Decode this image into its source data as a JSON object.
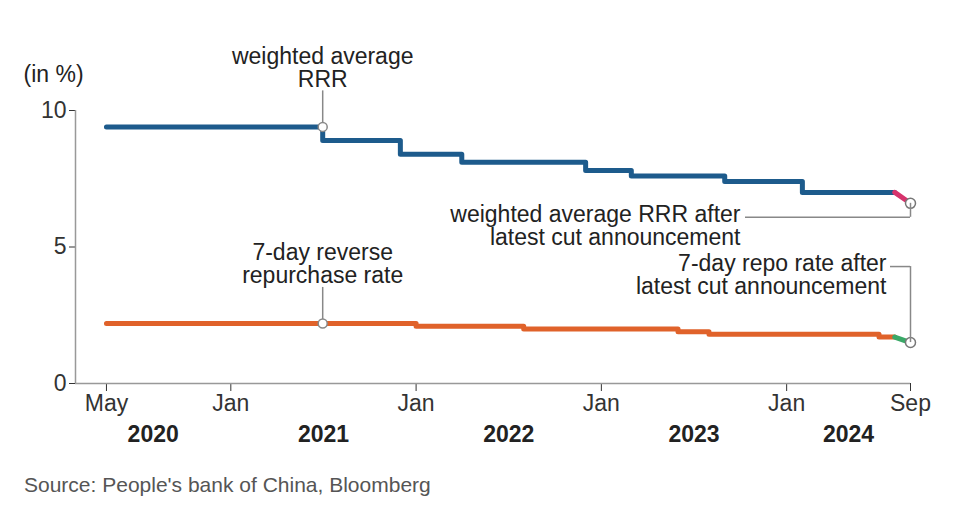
{
  "chart_data": {
    "type": "line",
    "y_label": "(in %)",
    "source": "Source: People's bank of China, Bloomberg",
    "x": [
      "2020-05",
      "2021-07",
      "2021-12",
      "2022-01",
      "2022-04",
      "2022-08",
      "2022-12",
      "2023-03",
      "2023-06",
      "2023-08",
      "2023-09",
      "2024-02",
      "2024-07",
      "2024-08",
      "2024-09"
    ],
    "xlim": [
      "2020-03",
      "2024-09"
    ],
    "xticks": [
      {
        "value": "2020-05",
        "label": "May"
      },
      {
        "value": "2021-01",
        "label": "Jan"
      },
      {
        "value": "2022-01",
        "label": "Jan"
      },
      {
        "value": "2023-01",
        "label": "Jan"
      },
      {
        "value": "2024-01",
        "label": "Jan"
      },
      {
        "value": "2024-09",
        "label": "Sep"
      }
    ],
    "year_labels": [
      "2020",
      "2021",
      "2022",
      "2023",
      "2024"
    ],
    "ylim": [
      0,
      10
    ],
    "yticks": [
      0,
      5,
      10
    ],
    "series": [
      {
        "name": "weighted average RRR",
        "color": "#1d5b8c",
        "line_style": "step",
        "values": [
          9.4,
          8.9,
          8.4,
          8.4,
          8.1,
          8.1,
          7.8,
          7.6,
          7.6,
          7.6,
          7.4,
          7.0,
          7.0,
          7.0,
          null
        ]
      },
      {
        "name": "weighted average RRR after latest cut announcement",
        "color": "#d6336c",
        "line_style": "solid",
        "marker": "circle",
        "values": [
          null,
          null,
          null,
          null,
          null,
          null,
          null,
          null,
          null,
          null,
          null,
          null,
          null,
          7.0,
          6.6
        ]
      },
      {
        "name": "7-day reverse repurchase rate",
        "color": "#e0622a",
        "line_style": "step",
        "values": [
          2.2,
          2.2,
          2.2,
          2.1,
          2.1,
          2.0,
          2.0,
          2.0,
          1.9,
          1.8,
          1.8,
          1.8,
          1.7,
          1.7,
          null
        ]
      },
      {
        "name": "7-day repo rate after latest cut announcement",
        "color": "#3aa867",
        "line_style": "solid",
        "marker": "circle",
        "values": [
          null,
          null,
          null,
          null,
          null,
          null,
          null,
          null,
          null,
          null,
          null,
          null,
          null,
          1.7,
          1.5
        ]
      }
    ]
  }
}
